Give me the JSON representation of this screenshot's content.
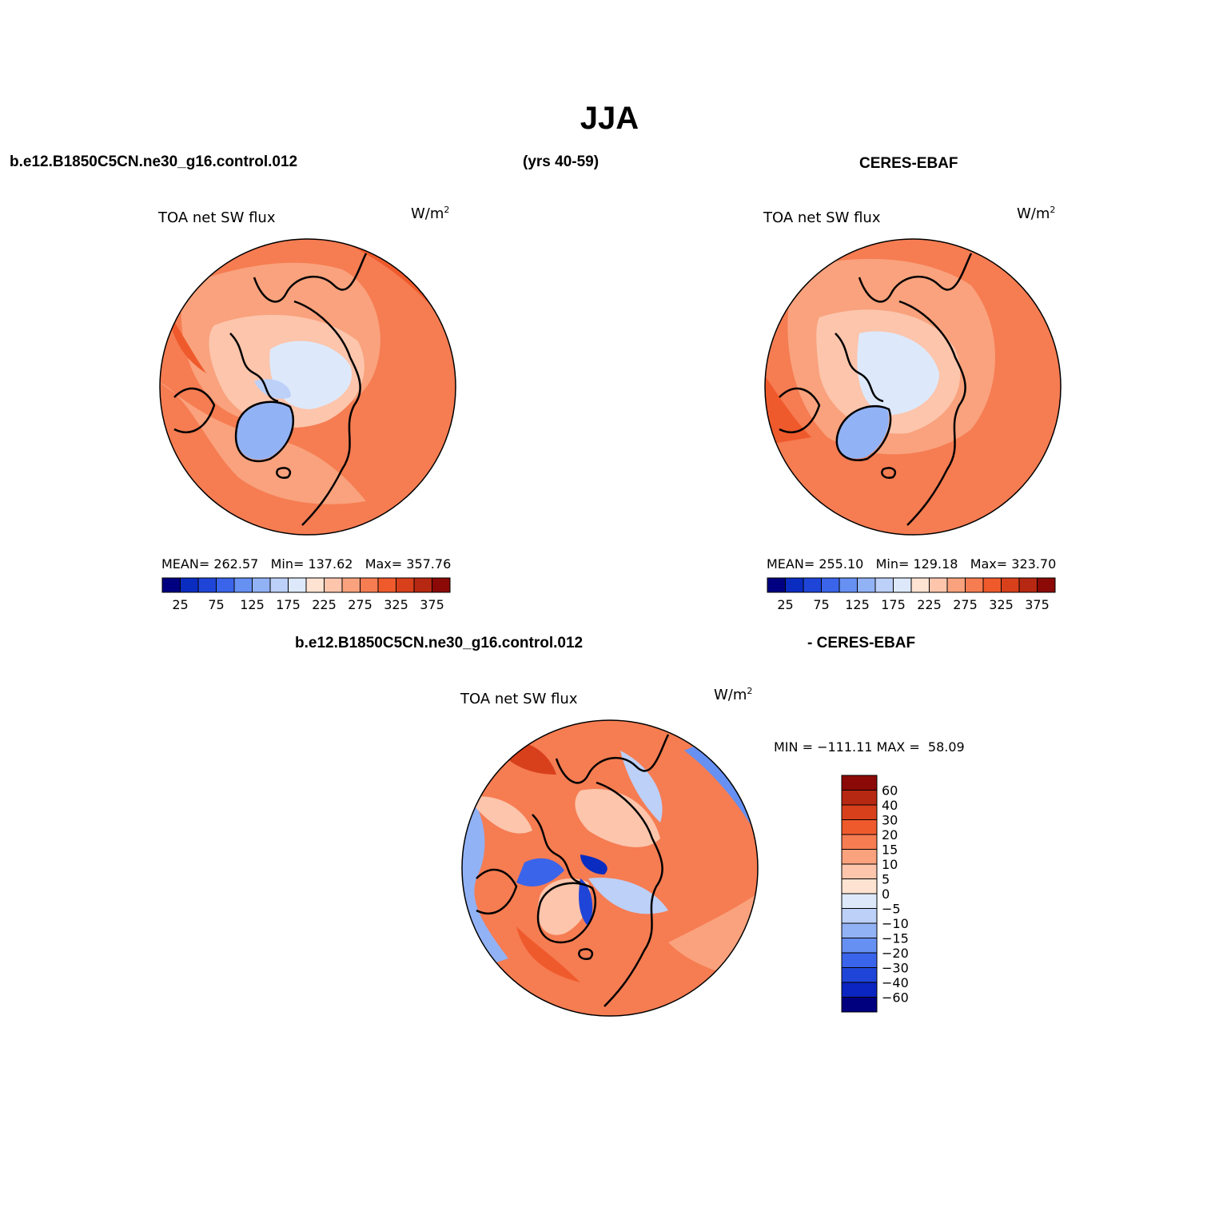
{
  "title": "JJA",
  "header": {
    "case_name": "b.e12.B1850C5CN.ne30_g16.control.012",
    "years": "(yrs 40-59)",
    "obs_name": "CERES-EBAF"
  },
  "diff_header": {
    "case_name": "b.e12.B1850C5CN.ne30_g16.control.012",
    "obs_name": "- CERES-EBAF"
  },
  "variable": "TOA net SW flux",
  "units": "W/m",
  "units_sup": "2",
  "panels": {
    "model": {
      "mean": "262.57",
      "min": "137.62",
      "max": "357.76",
      "stats_text": "MEAN= 262.57   Min= 137.62   Max= 357.76"
    },
    "obs": {
      "mean": "255.10",
      "min": "129.18",
      "max": "323.70",
      "stats_text": "MEAN= 255.10   Min= 129.18   Max= 323.70"
    },
    "diff": {
      "min": "−111.11",
      "max": "58.09",
      "stats_text": "MIN = −111.11 MAX =  58.09"
    }
  },
  "abs_colorbar": {
    "colors": [
      "#000080",
      "#0a2cc1",
      "#1f45d8",
      "#3a64ea",
      "#6690f2",
      "#92b2f6",
      "#bcd0f8",
      "#dde9fb",
      "#ffe3d2",
      "#fcc5ac",
      "#f9a27d",
      "#f67c52",
      "#ef5a2c",
      "#d8401c",
      "#b72812",
      "#8b0a07"
    ],
    "tick_labels": [
      "25",
      "75",
      "125",
      "175",
      "225",
      "275",
      "325",
      "375"
    ]
  },
  "diff_colorbar": {
    "colors": [
      "#00007f",
      "#0b25c0",
      "#1f45d8",
      "#3a64ea",
      "#6690f2",
      "#92b2f6",
      "#bcd0f8",
      "#dde9fb",
      "#ffe3d2",
      "#fcc5ac",
      "#f9a27d",
      "#f67c52",
      "#ef5a2c",
      "#d8401c",
      "#b72812",
      "#8b0a07"
    ],
    "tick_labels": [
      "60",
      "40",
      "30",
      "20",
      "15",
      "10",
      "5",
      "0",
      "−5",
      "−10",
      "−15",
      "−20",
      "−30",
      "−40",
      "−60"
    ]
  }
}
